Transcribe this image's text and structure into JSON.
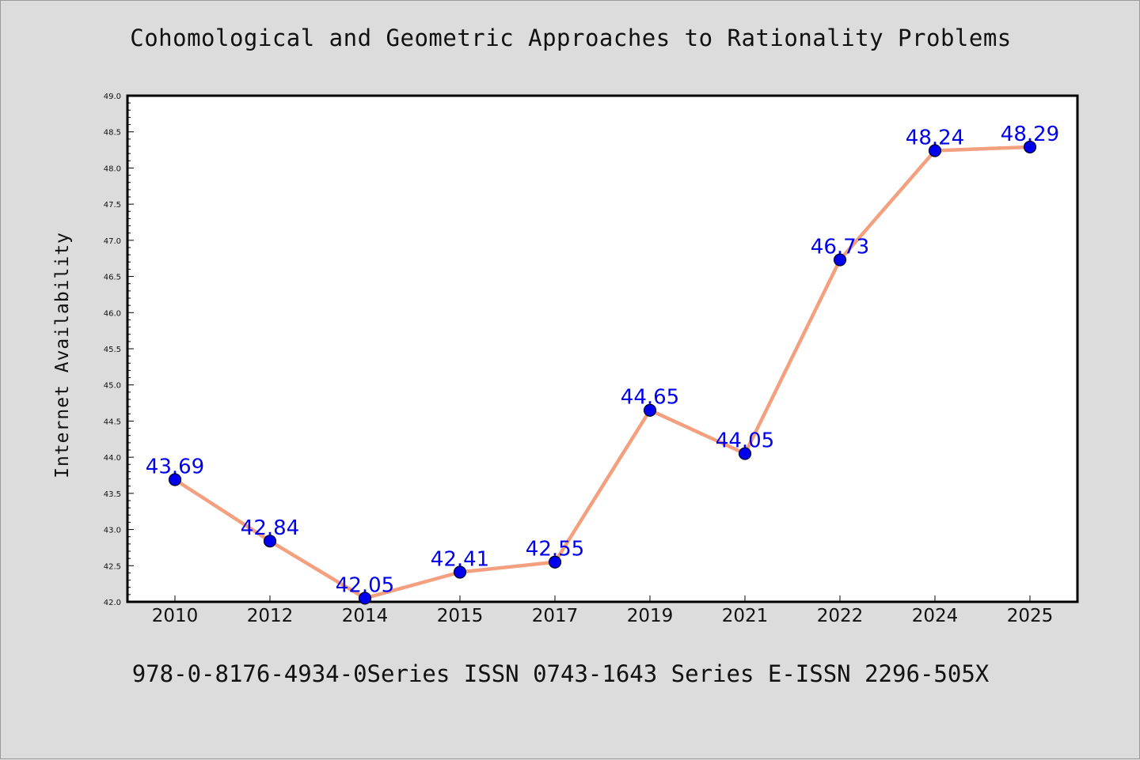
{
  "chart_data": {
    "type": "line",
    "title": "Cohomological and Geometric Approaches to Rationality Problems",
    "footer": "978-0-8176-4934-0Series ISSN 0743-1643 Series E-ISSN 2296-505X",
    "xlabel": "",
    "ylabel": "Internet Availability",
    "categories": [
      "2010",
      "2012",
      "2014",
      "2015",
      "2017",
      "2019",
      "2021",
      "2022",
      "2024",
      "2025"
    ],
    "series": [
      {
        "values": [
          43.69,
          42.84,
          42.05,
          42.41,
          42.55,
          44.65,
          44.05,
          46.73,
          48.24,
          48.29
        ],
        "data_labels": [
          "43.69",
          "42.84",
          "42.05",
          "42.41",
          "42.55",
          "44.65",
          "44.05",
          "46.73",
          "48.24",
          "48.29"
        ]
      }
    ],
    "ylim": [
      42.0,
      49.0
    ],
    "yticks": [
      "42.0",
      "42.5",
      "43.0",
      "43.5",
      "44.0",
      "44.5",
      "45.0",
      "45.5",
      "46.0",
      "46.5",
      "47.0",
      "47.5",
      "48.0",
      "48.5",
      "49.0"
    ],
    "grid": false,
    "legend": "none",
    "colors": {
      "line": "#f4a07e",
      "marker_fill": "#0000ee",
      "marker_edge": "#000022",
      "point_label": "#0000ee",
      "background": "#dcdcdc",
      "plot_background": "#ffffff",
      "axis": "#000000"
    }
  }
}
